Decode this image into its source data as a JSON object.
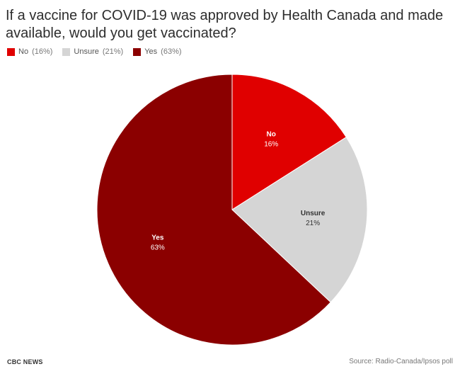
{
  "chart_data": {
    "type": "pie",
    "title": "If a vaccine for COVID-19 was approved by Health Canada and made available, would you get vaccinated?",
    "categories": [
      "No",
      "Unsure",
      "Yes"
    ],
    "values": [
      16,
      21,
      63
    ],
    "value_labels": [
      "16%",
      "21%",
      "63%"
    ],
    "legend_labels": [
      {
        "name": "No",
        "pct": "(16%)"
      },
      {
        "name": "Unsure",
        "pct": "(21%)"
      },
      {
        "name": "Yes",
        "pct": "(63%)"
      }
    ],
    "colors": [
      "#e00000",
      "#d5d5d5",
      "#8b0000"
    ],
    "legend_position": "top-left"
  },
  "footer": {
    "brand": "CBC NEWS",
    "source": "Source: Radio-Canada/Ipsos poll"
  }
}
